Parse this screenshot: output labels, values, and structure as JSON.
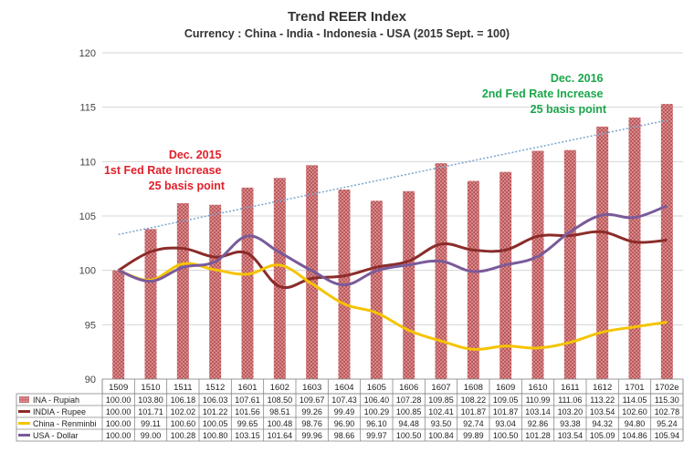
{
  "chart_data": {
    "type": "bar",
    "title": "Trend REER Index",
    "subtitle": "Currency : China - India - Indonesia - USA (2015 Sept. = 100)",
    "categories": [
      "1509",
      "1510",
      "1511",
      "1512",
      "1601",
      "1602",
      "1603",
      "1604",
      "1605",
      "1606",
      "1607",
      "1608",
      "1609",
      "1610",
      "1611",
      "1612",
      "1701",
      "1702e"
    ],
    "ylim": [
      90,
      120
    ],
    "yticks": [
      90,
      95,
      100,
      105,
      110,
      115,
      120
    ],
    "grid": true,
    "legend_placement": "bottom-table",
    "series": [
      {
        "name": "INA - Rupiah",
        "kind": "bar",
        "color": "#c9787a",
        "values": [
          100.0,
          103.8,
          106.18,
          106.03,
          107.61,
          108.5,
          109.67,
          107.43,
          106.4,
          107.28,
          109.85,
          108.22,
          109.05,
          110.99,
          111.06,
          113.22,
          114.05,
          115.3
        ]
      },
      {
        "name": "INDIA - Rupee",
        "kind": "line",
        "color": "#8b2c2a",
        "values": [
          100.0,
          101.71,
          102.02,
          101.22,
          101.56,
          98.51,
          99.26,
          99.49,
          100.29,
          100.85,
          102.41,
          101.87,
          101.87,
          103.14,
          103.2,
          103.54,
          102.6,
          102.78
        ]
      },
      {
        "name": "China - Renminbi",
        "kind": "line",
        "color": "#f5c400",
        "values": [
          100.0,
          99.11,
          100.6,
          100.05,
          99.65,
          100.48,
          98.76,
          96.9,
          96.1,
          94.48,
          93.5,
          92.74,
          93.04,
          92.86,
          93.38,
          94.32,
          94.8,
          95.24
        ]
      },
      {
        "name": "USA - Dollar",
        "kind": "line",
        "color": "#7a5a9a",
        "values": [
          100.0,
          99.0,
          100.28,
          100.8,
          103.15,
          101.64,
          99.96,
          98.66,
          99.97,
          100.5,
          100.84,
          99.89,
          100.5,
          101.28,
          103.54,
          105.09,
          104.86,
          105.94
        ]
      }
    ],
    "trendline": {
      "from": [
        0,
        103.3
      ],
      "to": [
        17,
        113.8
      ],
      "color": "#7ba6cf"
    },
    "annotations": [
      {
        "lines": [
          "Dec. 2015",
          "1st Fed Rate Increase",
          "25 basis point"
        ],
        "color": "#e0202a"
      },
      {
        "lines": [
          "Dec. 2016",
          "2nd Fed Rate Increase",
          "25 basis point"
        ],
        "color": "#1aa64a"
      }
    ]
  }
}
